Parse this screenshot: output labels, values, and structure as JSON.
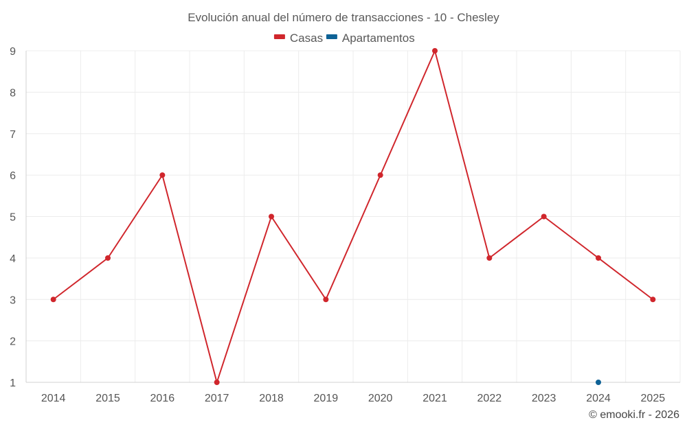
{
  "chart_data": {
    "type": "line",
    "title": "Evolución anual del número de transacciones - 10 - Chesley",
    "xlabel": "",
    "ylabel": "",
    "categories": [
      "2014",
      "2015",
      "2016",
      "2017",
      "2018",
      "2019",
      "2020",
      "2021",
      "2022",
      "2023",
      "2024",
      "2025"
    ],
    "ylim": [
      1,
      9
    ],
    "yticks": [
      1,
      2,
      3,
      4,
      5,
      6,
      7,
      8,
      9
    ],
    "grid": true,
    "legend_position": "top-center",
    "series": [
      {
        "name": "Casas",
        "color": "#d0262c",
        "values": [
          3,
          4,
          6,
          1,
          5,
          3,
          6,
          9,
          4,
          5,
          4,
          3
        ]
      },
      {
        "name": "Apartamentos",
        "color": "#0e6296",
        "values": [
          null,
          null,
          null,
          null,
          null,
          null,
          null,
          null,
          null,
          null,
          1,
          null
        ]
      }
    ]
  },
  "credit": "© emooki.fr - 2026"
}
